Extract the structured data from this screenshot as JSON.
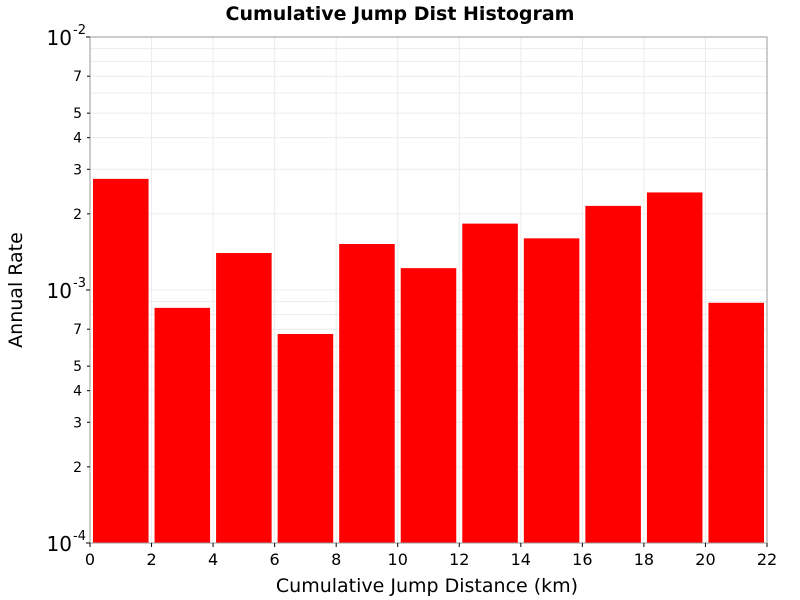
{
  "chart_data": {
    "type": "bar",
    "title": "Cumulative Jump Dist Histogram",
    "xlabel": "Cumulative Jump Distance (km)",
    "ylabel": "Annual Rate",
    "x_range": [
      0,
      22
    ],
    "x_ticks": [
      0,
      2,
      4,
      6,
      8,
      10,
      12,
      14,
      16,
      18,
      20,
      22
    ],
    "y_scale": "log",
    "y_range": [
      0.0001,
      0.01
    ],
    "y_major_ticks": [
      {
        "value": 0.0001,
        "base": "10",
        "exp": "-4"
      },
      {
        "value": 0.001,
        "base": "10",
        "exp": "-3"
      },
      {
        "value": 0.01,
        "base": "10",
        "exp": "-2"
      }
    ],
    "y_minor_labels": [
      "2",
      "3",
      "4",
      "5",
      "7"
    ],
    "grid": true,
    "bar_color": "#ff0000",
    "bins": [
      {
        "x0": 0,
        "x1": 2,
        "value": 0.00275
      },
      {
        "x0": 2,
        "x1": 4,
        "value": 0.00085
      },
      {
        "x0": 4,
        "x1": 6,
        "value": 0.0014
      },
      {
        "x0": 6,
        "x1": 8,
        "value": 0.00067
      },
      {
        "x0": 8,
        "x1": 10,
        "value": 0.00152
      },
      {
        "x0": 10,
        "x1": 12,
        "value": 0.00122
      },
      {
        "x0": 12,
        "x1": 14,
        "value": 0.00183
      },
      {
        "x0": 14,
        "x1": 16,
        "value": 0.0016
      },
      {
        "x0": 16,
        "x1": 18,
        "value": 0.00215
      },
      {
        "x0": 18,
        "x1": 20,
        "value": 0.00243
      },
      {
        "x0": 20,
        "x1": 22,
        "value": 0.00089
      }
    ]
  }
}
